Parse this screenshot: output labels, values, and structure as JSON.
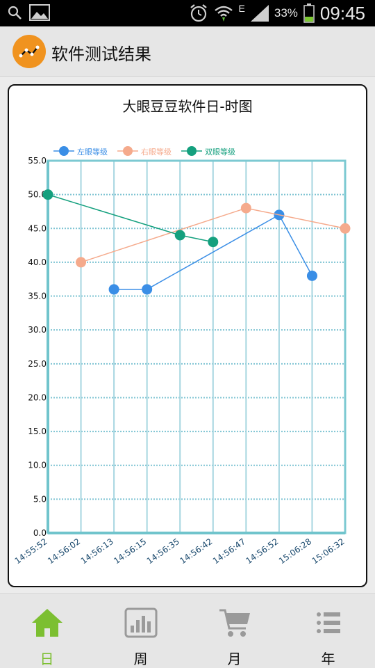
{
  "status_bar": {
    "network": "E",
    "battery": "33%",
    "time": "09:45",
    "icons": [
      "search-icon",
      "gallery-icon",
      "alarm-icon",
      "wifi-icon",
      "signal-icon",
      "battery-icon"
    ]
  },
  "action_bar": {
    "title": "软件测试结果",
    "icon": "line-chart-icon"
  },
  "chart_data": {
    "type": "line",
    "title": "大眼豆豆软件日-时图",
    "categories": [
      "14:55:52",
      "14:56:02",
      "14:56:13",
      "14:56:15",
      "14:56:35",
      "14:56:42",
      "14:56:47",
      "14:56:52",
      "15:06:28",
      "15:06:32"
    ],
    "ylim": [
      0,
      55
    ],
    "yticks": [
      "0.0",
      "5.0",
      "10.0",
      "15.0",
      "20.0",
      "25.0",
      "30.0",
      "35.0",
      "40.0",
      "45.0",
      "50.0",
      "55.0"
    ],
    "grid": true,
    "legend": "top-left",
    "series": [
      {
        "name": "左眼等级",
        "color": "#3a8ee6",
        "values": [
          null,
          null,
          36,
          36,
          null,
          null,
          null,
          47,
          38,
          null
        ]
      },
      {
        "name": "右眼等级",
        "color": "#f5aa8c",
        "values": [
          null,
          40,
          null,
          null,
          null,
          null,
          48,
          null,
          null,
          45
        ]
      },
      {
        "name": "双眼等级",
        "color": "#14a07e",
        "values": [
          50,
          null,
          null,
          null,
          44,
          43,
          null,
          null,
          null,
          null
        ]
      }
    ]
  },
  "bottom_nav": {
    "items": [
      {
        "label": "日",
        "icon": "home-icon",
        "active": true
      },
      {
        "label": "周",
        "icon": "bar-chart-icon",
        "active": false
      },
      {
        "label": "月",
        "icon": "cart-icon",
        "active": false
      },
      {
        "label": "年",
        "icon": "list-icon",
        "active": false
      }
    ],
    "active_color": "#7cbf31",
    "inactive_icon_color": "#9a9a9a"
  }
}
